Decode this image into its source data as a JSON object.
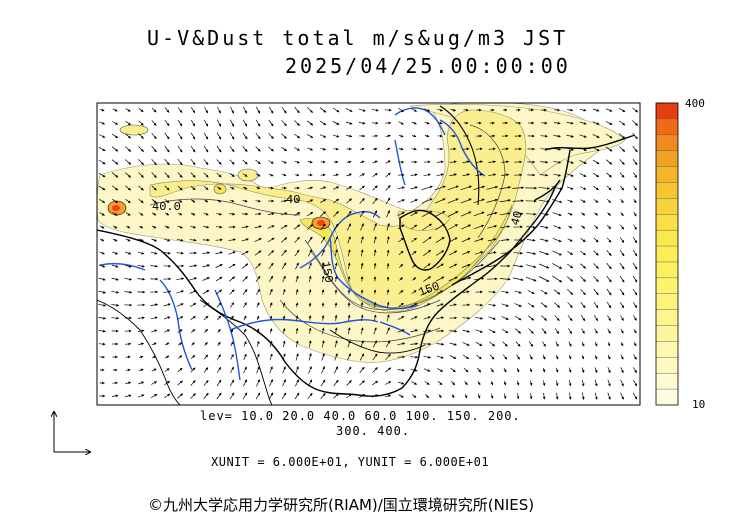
{
  "header": {
    "title": "U-V&Dust total m/s&ug/m3 JST",
    "datetime": "2025/04/25.00:00:00"
  },
  "map": {
    "contour_labels": [
      "40.0",
      "40",
      "150",
      "150",
      "40"
    ],
    "dust_colors": {
      "light": "#fdf6c6",
      "medium": "#fbee8e",
      "strong": "#f6e85b",
      "high": "#f3a12a",
      "peak": "#e8431a"
    },
    "river_color": "#1f55e6",
    "coast_color": "#000000"
  },
  "colorbar": {
    "max_label": "400",
    "min_label": "10",
    "colors": [
      "#e53c10",
      "#ee6a14",
      "#f08a1c",
      "#f2a222",
      "#f4b52a",
      "#f6c632",
      "#f8d43a",
      "#fae044",
      "#fbe84c",
      "#fcee56",
      "#fdf160",
      "#fdf36e",
      "#fef47c",
      "#fef58c",
      "#fef69c",
      "#fef8ae",
      "#fefac0",
      "#fefbd0",
      "#fefde2"
    ]
  },
  "legend": {
    "lev_line1": "lev= 10.0 20.0 40.0 60.0 100. 150. 200.",
    "lev_line2": "300. 400.",
    "unit_line": "XUNIT = 6.000E+01, YUNIT = 6.000E+01"
  },
  "footer": {
    "credit": "©九州大学応用力学研究所(RIAM)/国立環境研究所(NIES)"
  }
}
